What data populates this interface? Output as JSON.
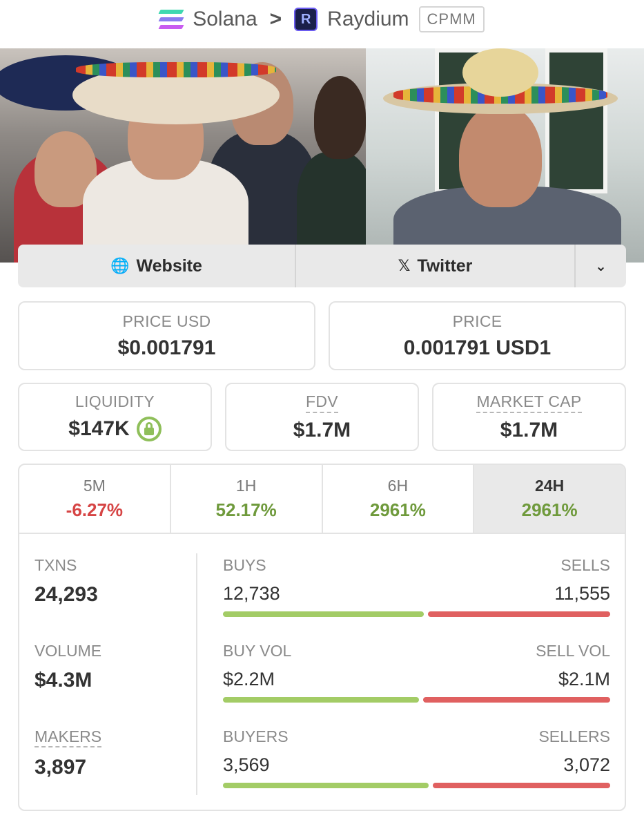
{
  "breadcrumb": {
    "chain": "Solana",
    "separator": ">",
    "dex": "Raydium",
    "dex_logo_letter": "R",
    "pool_type": "CPMM"
  },
  "links": {
    "website_label": "Website",
    "twitter_label": "Twitter"
  },
  "stats": {
    "price_usd_label": "PRICE USD",
    "price_usd_value": "$0.001791",
    "price_label": "PRICE",
    "price_value": "0.001791 USD1",
    "liquidity_label": "LIQUIDITY",
    "liquidity_value": "$147K",
    "fdv_label": "FDV",
    "fdv_value": "$1.7M",
    "mcap_label": "MARKET CAP",
    "mcap_value": "$1.7M"
  },
  "timeframes": [
    {
      "label": "5M",
      "change": "-6.27%",
      "direction": "negative"
    },
    {
      "label": "1H",
      "change": "52.17%",
      "direction": "positive"
    },
    {
      "label": "6H",
      "change": "2961%",
      "direction": "positive"
    },
    {
      "label": "24H",
      "change": "2961%",
      "direction": "positive",
      "active": true
    }
  ],
  "metrics": {
    "txns_label": "TXNS",
    "txns_value": "24,293",
    "volume_label": "VOLUME",
    "volume_value": "$4.3M",
    "makers_label": "MAKERS",
    "makers_value": "3,897"
  },
  "splits": [
    {
      "left_label": "BUYS",
      "right_label": "SELLS",
      "left_value": "12,738",
      "right_value": "11,555",
      "left_fraction": 0.524
    },
    {
      "left_label": "BUY VOL",
      "right_label": "SELL VOL",
      "left_value": "$2.2M",
      "right_value": "$2.1M",
      "left_fraction": 0.512
    },
    {
      "left_label": "BUYERS",
      "right_label": "SELLERS",
      "left_value": "3,569",
      "right_value": "3,072",
      "left_fraction": 0.537
    }
  ],
  "colors": {
    "positive": "#6f9a3c",
    "negative": "#d64545",
    "buy_bar": "#a3cc66",
    "sell_bar": "#e06060"
  }
}
